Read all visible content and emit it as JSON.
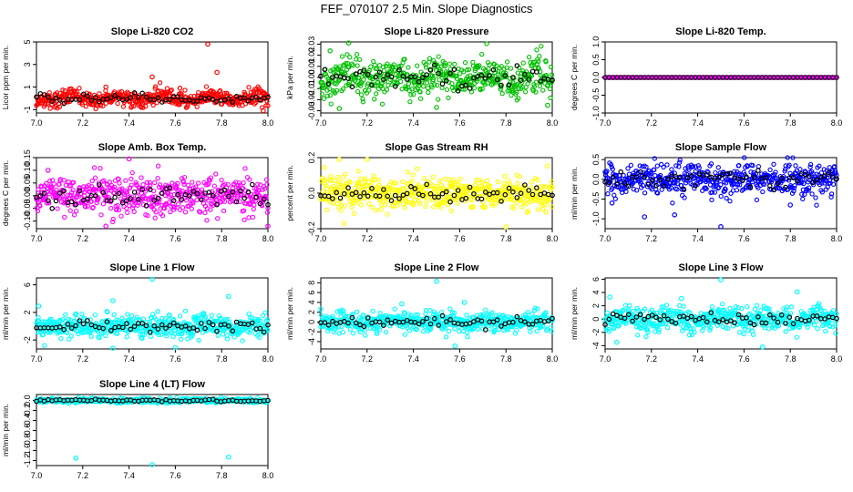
{
  "figure": {
    "title": "FEF_070107  2.5 Min. Slope Diagnostics"
  },
  "chart_data": [
    {
      "type": "scatter",
      "title": "Slope Li-820 CO2",
      "ylabel": "Licor ppm per min.",
      "xlim": [
        7.0,
        8.0
      ],
      "ylim": [
        -1.3,
        5.0
      ],
      "xticks": [
        7.0,
        7.2,
        7.4,
        7.6,
        7.8,
        8.0
      ],
      "xtick_labels": [
        "7.0",
        "7.2",
        "7.4",
        "7.6",
        "7.8",
        "8.0"
      ],
      "yticks": [
        -1,
        1,
        3,
        5
      ],
      "ytick_labels": [
        "-1",
        "1",
        "3",
        "5"
      ],
      "color": "#ff0000",
      "noise": 0.35,
      "smooth_amp": 0.25,
      "baseline": 0.0,
      "outliers": [
        [
          7.74,
          4.8
        ],
        [
          7.78,
          2.3
        ],
        [
          7.5,
          1.9
        ],
        [
          7.62,
          0.9
        ],
        [
          7.98,
          -1.1
        ],
        [
          7.3,
          1.0
        ]
      ]
    },
    {
      "type": "scatter",
      "title": "Slope Li-820 Pressure",
      "ylabel": "kPa per min.",
      "xlim": [
        7.0,
        8.0
      ],
      "ylim": [
        -0.032,
        0.032
      ],
      "xticks": [
        7.0,
        7.2,
        7.4,
        7.6,
        7.8,
        8.0
      ],
      "xtick_labels": [
        "7.0",
        "7.2",
        "7.4",
        "7.6",
        "7.8",
        "8.0"
      ],
      "yticks": [
        -0.03,
        -0.02,
        -0.01,
        0.0,
        0.01,
        0.02,
        0.03
      ],
      "ytick_labels": [
        "-0.03",
        "-0.02",
        "-0.01",
        "0.00",
        "0.01",
        "0.02",
        "0.03"
      ],
      "color": "#00c000",
      "noise": 0.008,
      "smooth_amp": 0.004,
      "baseline": 0.0,
      "outliers": [
        [
          7.12,
          0.031
        ],
        [
          7.08,
          -0.028
        ],
        [
          7.5,
          -0.027
        ],
        [
          7.98,
          -0.025
        ],
        [
          7.04,
          0.024
        ]
      ]
    },
    {
      "type": "scatter",
      "title": "Slope Li-820 Temp.",
      "ylabel": "degrees C per min.",
      "xlim": [
        7.0,
        8.0
      ],
      "ylim": [
        -1.0,
        1.0
      ],
      "xticks": [
        7.0,
        7.2,
        7.4,
        7.6,
        7.8,
        8.0
      ],
      "xtick_labels": [
        "7.0",
        "7.2",
        "7.4",
        "7.6",
        "7.8",
        "8.0"
      ],
      "yticks": [
        -1.0,
        -0.5,
        0.0,
        0.5,
        1.0
      ],
      "ytick_labels": [
        "-1.0",
        "-0.5",
        "0.0",
        "0.5",
        "1.0"
      ],
      "color": "#ff00ff",
      "noise": 0.0,
      "smooth_amp": 0.0,
      "baseline": 0.0,
      "outliers": []
    },
    {
      "type": "scatter",
      "title": "Slope Amb. Box Temp.",
      "ylabel": "degrees C per min.",
      "xlim": [
        7.0,
        8.0
      ],
      "ylim": [
        -0.13,
        0.15
      ],
      "xticks": [
        7.0,
        7.2,
        7.4,
        7.6,
        7.8,
        8.0
      ],
      "xtick_labels": [
        "7.0",
        "7.2",
        "7.4",
        "7.6",
        "7.8",
        "8.0"
      ],
      "yticks": [
        -0.1,
        -0.05,
        0.0,
        0.05,
        0.1,
        0.15
      ],
      "ytick_labels": [
        "-0.10",
        "-0.05",
        "0.00",
        "0.05",
        "0.10",
        "0.15"
      ],
      "color": "#ff00ff",
      "noise": 0.035,
      "smooth_amp": 0.01,
      "baseline": 0.0,
      "outliers": [
        [
          7.4,
          0.145
        ],
        [
          7.3,
          -0.12
        ],
        [
          8.0,
          -0.12
        ],
        [
          7.05,
          0.1
        ]
      ]
    },
    {
      "type": "scatter",
      "title": "Slope Gas Stream RH",
      "ylabel": "percent per min.",
      "xlim": [
        7.0,
        8.0
      ],
      "ylim": [
        -0.2,
        0.2
      ],
      "xticks": [
        7.0,
        7.2,
        7.4,
        7.6,
        7.8,
        8.0
      ],
      "xtick_labels": [
        "7.0",
        "7.2",
        "7.4",
        "7.6",
        "7.8",
        "8.0"
      ],
      "yticks": [
        -0.2,
        0.0,
        0.2
      ],
      "ytick_labels": [
        "-0.2",
        "0.0",
        "0.2"
      ],
      "color": "#ffff00",
      "noise": 0.045,
      "smooth_amp": 0.01,
      "baseline": 0.0,
      "outliers": [
        [
          7.08,
          0.19
        ],
        [
          7.2,
          0.19
        ],
        [
          7.8,
          -0.19
        ],
        [
          7.1,
          -0.17
        ]
      ]
    },
    {
      "type": "scatter",
      "title": "Slope Sample Flow",
      "ylabel": "ml/min per min.",
      "xlim": [
        7.0,
        8.0
      ],
      "ylim": [
        -1.25,
        0.55
      ],
      "xticks": [
        7.0,
        7.2,
        7.4,
        7.6,
        7.8,
        8.0
      ],
      "xtick_labels": [
        "7.0",
        "7.2",
        "7.4",
        "7.6",
        "7.8",
        "8.0"
      ],
      "yticks": [
        -1.0,
        -0.5,
        0.0,
        0.5
      ],
      "ytick_labels": [
        "-1.0",
        "-0.5",
        "0.0",
        "0.5"
      ],
      "color": "#0000ff",
      "noise": 0.2,
      "smooth_amp": 0.05,
      "baseline": 0.0,
      "outliers": [
        [
          7.5,
          -1.2
        ],
        [
          7.17,
          -0.95
        ],
        [
          7.3,
          -0.9
        ],
        [
          7.03,
          -0.6
        ],
        [
          7.8,
          -0.65
        ]
      ]
    },
    {
      "type": "scatter",
      "title": "Slope Line 1 Flow",
      "ylabel": "ml/min per min.",
      "xlim": [
        7.0,
        8.0
      ],
      "ylim": [
        -3.3,
        7.0
      ],
      "xticks": [
        7.0,
        7.2,
        7.4,
        7.6,
        7.8,
        8.0
      ],
      "xtick_labels": [
        "7.0",
        "7.2",
        "7.4",
        "7.6",
        "7.8",
        "8.0"
      ],
      "yticks": [
        -2,
        2,
        6
      ],
      "ytick_labels": [
        "-2",
        "2",
        "6"
      ],
      "color": "#00ffff",
      "noise": 0.8,
      "smooth_amp": 0.2,
      "baseline": 0.0,
      "outliers": [
        [
          7.5,
          6.8
        ],
        [
          7.83,
          4.3
        ],
        [
          7.33,
          3.7
        ],
        [
          7.01,
          2.9
        ],
        [
          7.33,
          -3.2
        ],
        [
          7.6,
          -3.1
        ]
      ]
    },
    {
      "type": "scatter",
      "title": "Slope Line 2 Flow",
      "ylabel": "ml/min per min.",
      "xlim": [
        7.0,
        8.0
      ],
      "ylim": [
        -5.5,
        9.0
      ],
      "xticks": [
        7.0,
        7.2,
        7.4,
        7.6,
        7.8,
        8.0
      ],
      "xtick_labels": [
        "7.0",
        "7.2",
        "7.4",
        "7.6",
        "7.8",
        "8.0"
      ],
      "yticks": [
        -4,
        -2,
        0,
        2,
        4,
        6,
        8
      ],
      "ytick_labels": [
        "-4",
        "-2",
        "0",
        "2",
        "4",
        "6",
        "8"
      ],
      "color": "#00ffff",
      "noise": 1.0,
      "smooth_amp": 0.3,
      "baseline": 0.0,
      "outliers": [
        [
          7.5,
          8.3
        ],
        [
          7.62,
          4.0
        ],
        [
          7.35,
          3.7
        ],
        [
          7.58,
          -4.9
        ],
        [
          7.0,
          2.6
        ]
      ]
    },
    {
      "type": "scatter",
      "title": "Slope Line 3 Flow",
      "ylabel": "ml/min per min.",
      "xlim": [
        7.0,
        8.0
      ],
      "ylim": [
        -4.5,
        6.2
      ],
      "xticks": [
        7.0,
        7.2,
        7.4,
        7.6,
        7.8,
        8.0
      ],
      "xtick_labels": [
        "7.0",
        "7.2",
        "7.4",
        "7.6",
        "7.8",
        "8.0"
      ],
      "yticks": [
        -4,
        -2,
        0,
        2,
        4,
        6
      ],
      "ytick_labels": [
        "-4",
        "-2",
        "0",
        "2",
        "4",
        "6"
      ],
      "color": "#00ffff",
      "noise": 0.9,
      "smooth_amp": 0.3,
      "baseline": 0.0,
      "outliers": [
        [
          7.5,
          5.9
        ],
        [
          7.83,
          4.1
        ],
        [
          7.33,
          3.1
        ],
        [
          7.02,
          3.3
        ],
        [
          7.68,
          -4.2
        ],
        [
          7.05,
          -3.5
        ]
      ]
    },
    {
      "type": "scatter",
      "title": "Slope Line 4 (LT) Flow",
      "ylabel": "ml/min per min.",
      "xlim": [
        7.0,
        8.0
      ],
      "ylim": [
        -1.3,
        0.12
      ],
      "xticks": [
        7.0,
        7.2,
        7.4,
        7.6,
        7.8,
        8.0
      ],
      "xtick_labels": [
        "7.0",
        "7.2",
        "7.4",
        "7.6",
        "7.8",
        "8.0"
      ],
      "yticks": [
        -1.2,
        -1.0,
        -0.8,
        -0.6,
        -0.4,
        -0.2,
        0.0
      ],
      "ytick_labels": [
        "-1.2",
        "-1.0",
        "-0.8",
        "-0.6",
        "-0.4",
        "-0.2",
        "0.0"
      ],
      "color": "#00ffff",
      "noise": 0.02,
      "smooth_amp": 0.005,
      "baseline": 0.0,
      "outliers": [
        [
          7.17,
          -1.15
        ],
        [
          7.83,
          -1.13
        ],
        [
          7.5,
          -1.28
        ]
      ]
    }
  ]
}
